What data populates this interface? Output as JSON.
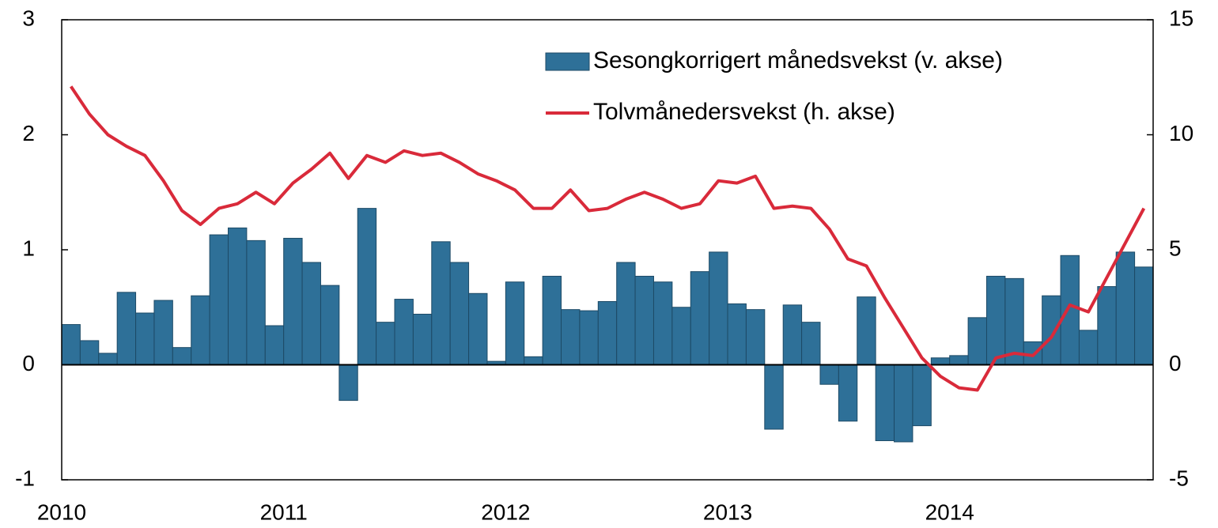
{
  "chart_data": {
    "type": "bar",
    "categories": [
      "2010",
      null,
      null,
      null,
      null,
      null,
      null,
      null,
      null,
      null,
      null,
      null,
      "2011",
      null,
      null,
      null,
      null,
      null,
      null,
      null,
      null,
      null,
      null,
      null,
      "2012",
      null,
      null,
      null,
      null,
      null,
      null,
      null,
      null,
      null,
      null,
      null,
      "2013",
      null,
      null,
      null,
      null,
      null,
      null,
      null,
      null,
      null,
      null,
      null,
      "2014",
      null,
      null,
      null,
      null,
      null,
      null,
      null,
      null,
      null,
      null
    ],
    "series": [
      {
        "name": "Sesongkorrigert månedsvekst (v. akse)",
        "type": "bar",
        "axis": "y",
        "color": "#2e7098",
        "values": [
          0.35,
          0.21,
          0.1,
          0.63,
          0.45,
          0.56,
          0.15,
          0.6,
          1.13,
          1.19,
          1.08,
          0.34,
          1.1,
          0.89,
          0.69,
          -0.31,
          1.36,
          0.37,
          0.57,
          0.44,
          1.07,
          0.89,
          0.62,
          0.03,
          0.72,
          0.07,
          0.77,
          0.48,
          0.47,
          0.55,
          0.89,
          0.77,
          0.72,
          0.5,
          0.81,
          0.98,
          0.53,
          0.48,
          -0.56,
          0.52,
          0.37,
          -0.17,
          -0.49,
          0.59,
          -0.66,
          -0.67,
          -0.53,
          0.06,
          0.08,
          0.41,
          0.77,
          0.75,
          0.2,
          0.6,
          0.95,
          0.3,
          0.68,
          0.98,
          0.85
        ]
      },
      {
        "name": "Tolvmånedersvekst (h. akse)",
        "type": "line",
        "axis": "y2",
        "color": "#d92a3a",
        "values": [
          12.1,
          10.9,
          10.0,
          9.5,
          9.1,
          8.0,
          6.7,
          6.1,
          6.8,
          7.0,
          7.5,
          7.0,
          7.9,
          8.5,
          9.2,
          8.1,
          9.1,
          8.8,
          9.3,
          9.1,
          9.2,
          8.8,
          8.3,
          8.0,
          7.6,
          6.8,
          6.8,
          7.6,
          6.7,
          6.8,
          7.2,
          7.5,
          7.2,
          6.8,
          7.0,
          8.0,
          7.9,
          8.2,
          6.8,
          6.9,
          6.8,
          5.9,
          4.6,
          4.3,
          2.9,
          1.6,
          0.3,
          -0.5,
          -1.0,
          -1.1,
          0.3,
          0.5,
          0.4,
          1.2,
          2.6,
          2.3,
          3.8,
          5.3,
          6.8
        ]
      }
    ],
    "ylim": [
      -1,
      3
    ],
    "yticks": [
      -1,
      0,
      1,
      2,
      3
    ],
    "y2lim": [
      -5,
      15
    ],
    "y2ticks": [
      -5,
      0,
      5,
      10,
      15
    ],
    "legend": "upper right"
  }
}
